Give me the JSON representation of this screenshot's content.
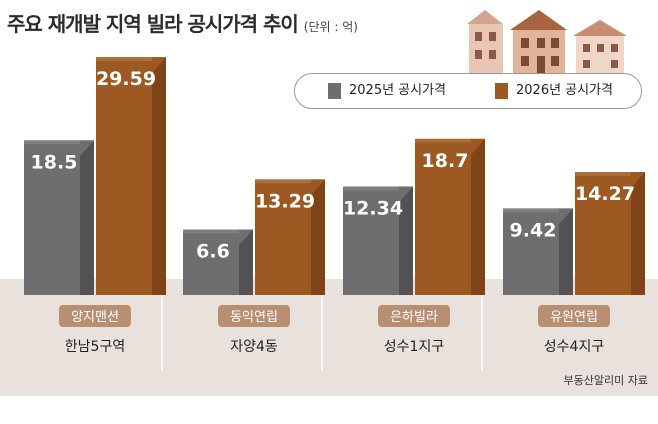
{
  "title": "주요 재개발 지역 빌라 공시가격 추이",
  "unit": "(단위 : 억)",
  "source": "부동산알리미 자료",
  "legend": [
    {
      "label": "2025년 공시가격",
      "color": "#6e6e70"
    },
    {
      "label": "2026년 공시가격",
      "color": "#9c5a22"
    }
  ],
  "colors": {
    "gray_front": "#6e6e70",
    "gray_side": "#4e4e50",
    "brown_front": "#9c5a22",
    "brown_side": "#7a4014",
    "floor": "#e8e1dc",
    "tag": "#b98f72"
  },
  "chart_data": {
    "type": "bar",
    "categories": [
      "양지맨션",
      "동익연립",
      "은하빌라",
      "유원연립"
    ],
    "sublabels": [
      "한남5구역",
      "자양4동",
      "성수1지구",
      "성수4지구"
    ],
    "series": [
      {
        "name": "2025년 공시가격",
        "values": [
          18.5,
          6.6,
          12.34,
          9.42
        ]
      },
      {
        "name": "2026년 공시가격",
        "values": [
          29.59,
          13.29,
          18.7,
          14.27
        ]
      }
    ],
    "value_labels": [
      [
        "18.5",
        "6.6",
        "12.34",
        "9.42"
      ],
      [
        "29.59",
        "13.29",
        "18.7",
        "14.27"
      ]
    ],
    "ylim": [
      0,
      30
    ],
    "legend_position": "top-right"
  }
}
